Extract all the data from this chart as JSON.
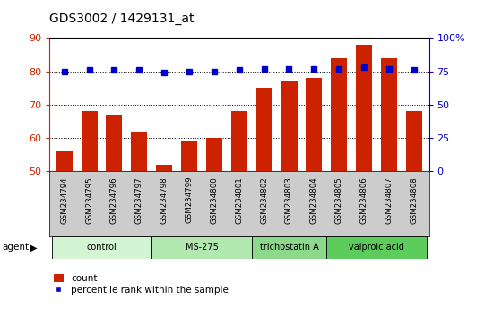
{
  "title": "GDS3002 / 1429131_at",
  "samples": [
    "GSM234794",
    "GSM234795",
    "GSM234796",
    "GSM234797",
    "GSM234798",
    "GSM234799",
    "GSM234800",
    "GSM234801",
    "GSM234802",
    "GSM234803",
    "GSM234804",
    "GSM234805",
    "GSM234806",
    "GSM234807",
    "GSM234808"
  ],
  "counts": [
    56,
    68,
    67,
    62,
    52,
    59,
    60,
    68,
    75,
    77,
    78,
    84,
    88,
    84,
    68
  ],
  "percentiles": [
    75,
    76,
    76,
    76,
    74,
    75,
    75,
    76,
    77,
    77,
    77,
    77,
    78,
    77,
    76
  ],
  "bar_color": "#cc2200",
  "dot_color": "#0000cc",
  "left_ylim": [
    50,
    90
  ],
  "left_yticks": [
    50,
    60,
    70,
    80,
    90
  ],
  "right_ylim": [
    0,
    100
  ],
  "right_yticks": [
    0,
    25,
    50,
    75,
    100
  ],
  "right_yticklabels": [
    "0",
    "25",
    "50",
    "75",
    "100%"
  ],
  "groups": [
    {
      "label": "control",
      "start": 0,
      "end": 3
    },
    {
      "label": "MS-275",
      "start": 4,
      "end": 7
    },
    {
      "label": "trichostatin A",
      "start": 8,
      "end": 10
    },
    {
      "label": "valproic acid",
      "start": 11,
      "end": 14
    }
  ],
  "group_colors": [
    "#d4f5d4",
    "#b0e8b0",
    "#8cd98c",
    "#5ccc5c"
  ],
  "agent_label": "agent",
  "legend_count": "count",
  "legend_percentile": "percentile rank within the sample",
  "left_axis_color": "#cc2200",
  "right_axis_color": "#0000cc",
  "sample_label_bg": "#cccccc",
  "plot_bg": "#ffffff"
}
